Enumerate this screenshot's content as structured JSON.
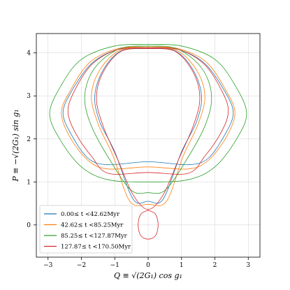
{
  "chart_data": {
    "type": "line",
    "title": "",
    "xlabel": "Q ≡ √(2G₁) cos g₁",
    "ylabel": "P ≡ −√(2G₁) sin g₁",
    "xlim": [
      -3.35,
      3.35
    ],
    "ylim": [
      -0.75,
      4.45
    ],
    "xticks": [
      -3,
      -2,
      -1,
      0,
      1,
      2,
      3
    ],
    "yticks": [
      0,
      1,
      2,
      3,
      4
    ],
    "grid": true,
    "legend_position": "lower-left",
    "series": [
      {
        "name": "0.00≤ t <42.62Myr",
        "color": "#1f77b4",
        "loops": [
          [
            [
              0.0,
              4.12
            ],
            [
              0.9,
              4.08
            ],
            [
              1.7,
              3.75
            ],
            [
              2.3,
              3.1
            ],
            [
              2.55,
              2.6
            ],
            [
              2.3,
              2.1
            ],
            [
              1.8,
              1.55
            ],
            [
              1.2,
              1.4
            ],
            [
              0.0,
              1.47
            ],
            [
              -1.2,
              1.4
            ],
            [
              -1.8,
              1.55
            ],
            [
              -2.3,
              2.1
            ],
            [
              -2.55,
              2.6
            ],
            [
              -2.3,
              3.1
            ],
            [
              -1.7,
              3.75
            ],
            [
              -0.9,
              4.08
            ],
            [
              0.0,
              4.12
            ]
          ],
          [
            [
              0.0,
              4.1
            ],
            [
              0.8,
              4.05
            ],
            [
              1.35,
              3.6
            ],
            [
              1.6,
              3.0
            ],
            [
              1.45,
              2.4
            ],
            [
              1.0,
              1.7
            ],
            [
              0.45,
              0.6
            ],
            [
              0.0,
              0.55
            ],
            [
              -0.45,
              0.6
            ],
            [
              -1.0,
              1.7
            ],
            [
              -1.45,
              2.4
            ],
            [
              -1.6,
              3.0
            ],
            [
              -1.35,
              3.6
            ],
            [
              -0.8,
              4.05
            ],
            [
              0.0,
              4.1
            ]
          ]
        ]
      },
      {
        "name": "42.62≤ t <85.25Myr",
        "color": "#ff7f0e",
        "loops": [
          [
            [
              0.0,
              4.14
            ],
            [
              0.9,
              4.1
            ],
            [
              1.75,
              3.78
            ],
            [
              2.35,
              3.1
            ],
            [
              2.6,
              2.6
            ],
            [
              2.35,
              2.05
            ],
            [
              1.8,
              1.5
            ],
            [
              1.2,
              1.3
            ],
            [
              0.0,
              1.35
            ],
            [
              -1.2,
              1.3
            ],
            [
              -1.8,
              1.5
            ],
            [
              -2.35,
              2.05
            ],
            [
              -2.6,
              2.6
            ],
            [
              -2.35,
              3.1
            ],
            [
              -1.75,
              3.78
            ],
            [
              -0.9,
              4.1
            ],
            [
              0.0,
              4.14
            ]
          ],
          [
            [
              0.0,
              4.12
            ],
            [
              0.85,
              4.06
            ],
            [
              1.45,
              3.6
            ],
            [
              1.7,
              3.0
            ],
            [
              1.5,
              2.35
            ],
            [
              1.05,
              1.6
            ],
            [
              0.55,
              0.55
            ],
            [
              0.0,
              0.48
            ],
            [
              -0.55,
              0.55
            ],
            [
              -1.05,
              1.6
            ],
            [
              -1.5,
              2.35
            ],
            [
              -1.7,
              3.0
            ],
            [
              -1.45,
              3.6
            ],
            [
              -0.85,
              4.06
            ],
            [
              0.0,
              4.12
            ]
          ]
        ]
      },
      {
        "name": "85.25≤ t <127.87Myr",
        "color": "#2ca02c",
        "loops": [
          [
            [
              0.0,
              4.2
            ],
            [
              1.0,
              4.16
            ],
            [
              2.0,
              3.85
            ],
            [
              2.6,
              3.25
            ],
            [
              2.95,
              2.6
            ],
            [
              2.65,
              2.0
            ],
            [
              2.0,
              1.35
            ],
            [
              1.2,
              1.05
            ],
            [
              0.0,
              1.0
            ],
            [
              -1.2,
              1.05
            ],
            [
              -2.0,
              1.35
            ],
            [
              -2.65,
              2.0
            ],
            [
              -2.95,
              2.6
            ],
            [
              -2.6,
              3.25
            ],
            [
              -2.0,
              3.85
            ],
            [
              -1.0,
              4.16
            ],
            [
              0.0,
              4.2
            ]
          ],
          [
            [
              0.0,
              4.16
            ],
            [
              0.85,
              4.1
            ],
            [
              1.6,
              3.65
            ],
            [
              1.9,
              3.0
            ],
            [
              1.7,
              2.3
            ],
            [
              1.1,
              1.45
            ],
            [
              0.5,
              0.8
            ],
            [
              0.0,
              0.75
            ],
            [
              -0.5,
              0.8
            ],
            [
              -1.1,
              1.45
            ],
            [
              -1.7,
              2.3
            ],
            [
              -1.9,
              3.0
            ],
            [
              -1.6,
              3.65
            ],
            [
              -0.85,
              4.1
            ],
            [
              0.0,
              4.16
            ]
          ]
        ]
      },
      {
        "name": "127.87≤ t <170.50Myr",
        "color": "#d62728",
        "loops": [
          [
            [
              0.0,
              4.12
            ],
            [
              0.9,
              4.08
            ],
            [
              1.7,
              3.72
            ],
            [
              2.25,
              3.05
            ],
            [
              2.4,
              2.6
            ],
            [
              2.15,
              2.1
            ],
            [
              1.7,
              1.6
            ],
            [
              1.2,
              1.2
            ],
            [
              0.0,
              1.22
            ],
            [
              -1.2,
              1.2
            ],
            [
              -1.7,
              1.6
            ],
            [
              -2.15,
              2.1
            ],
            [
              -2.4,
              2.6
            ],
            [
              -2.25,
              3.05
            ],
            [
              -1.7,
              3.72
            ],
            [
              -0.9,
              4.08
            ],
            [
              0.0,
              4.12
            ]
          ],
          [
            [
              0.0,
              4.1
            ],
            [
              0.8,
              4.04
            ],
            [
              1.35,
              3.55
            ],
            [
              1.55,
              2.95
            ],
            [
              1.35,
              2.3
            ],
            [
              0.9,
              1.5
            ],
            [
              0.45,
              0.7
            ],
            [
              0.0,
              0.36
            ],
            [
              -0.45,
              0.7
            ],
            [
              -0.9,
              1.5
            ],
            [
              -1.35,
              2.3
            ],
            [
              -1.55,
              2.95
            ],
            [
              -1.35,
              3.55
            ],
            [
              -0.8,
              4.04
            ],
            [
              0.0,
              4.1
            ]
          ],
          [
            [
              0.0,
              0.34
            ],
            [
              0.22,
              0.25
            ],
            [
              0.3,
              0.0
            ],
            [
              0.22,
              -0.25
            ],
            [
              0.0,
              -0.33
            ],
            [
              -0.22,
              -0.25
            ],
            [
              -0.3,
              0.0
            ],
            [
              -0.22,
              0.25
            ],
            [
              0.0,
              0.34
            ]
          ]
        ]
      }
    ]
  }
}
